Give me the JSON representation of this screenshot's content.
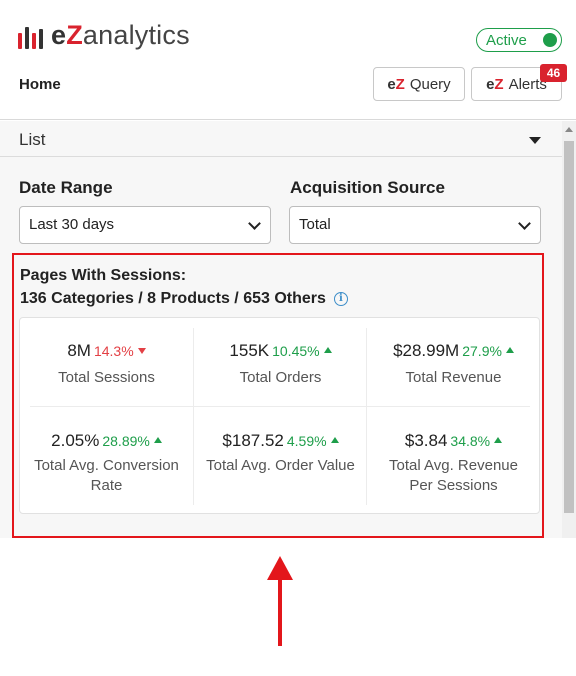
{
  "header": {
    "logo": {
      "e": "e",
      "z": "Z",
      "rest": "analytics"
    },
    "status": {
      "label": "Active",
      "color": "#1e9e4a"
    },
    "home_label": "Home",
    "query_button": {
      "prefix_e": "e",
      "prefix_z": "Z",
      "label": "Query"
    },
    "alerts_button": {
      "prefix_e": "e",
      "prefix_z": "Z",
      "label": "Alerts"
    },
    "alerts_badge": "46"
  },
  "view_selector": {
    "label": "List",
    "icon": "caret-down-icon"
  },
  "filters": {
    "date_range": {
      "label": "Date Range",
      "value": "Last 30 days"
    },
    "acquisition_source": {
      "label": "Acquisition Source",
      "value": "Total"
    }
  },
  "summary": {
    "title": "Pages With Sessions:",
    "subtitle": "136 Categories / 8 Products / 653 Others",
    "info_icon": "info-icon"
  },
  "metrics": [
    {
      "value": "8M",
      "change": "14.3%",
      "direction": "down",
      "label": "Total Sessions"
    },
    {
      "value": "155K",
      "change": "10.45%",
      "direction": "up",
      "label": "Total Orders"
    },
    {
      "value": "$28.99M",
      "change": "27.9%",
      "direction": "up",
      "label": "Total Revenue"
    },
    {
      "value": "2.05%",
      "change": "28.89%",
      "direction": "up",
      "label": "Total Avg. Conversion Rate"
    },
    {
      "value": "$187.52",
      "change": "4.59%",
      "direction": "up",
      "label": "Total Avg. Order Value"
    },
    {
      "value": "$3.84",
      "change": "34.8%",
      "direction": "up",
      "label": "Total Avg. Revenue Per Sessions"
    }
  ],
  "colors": {
    "brand_red": "#d9232e",
    "positive": "#1e9e4a",
    "negative": "#e34045",
    "highlight": "#e3161b"
  }
}
